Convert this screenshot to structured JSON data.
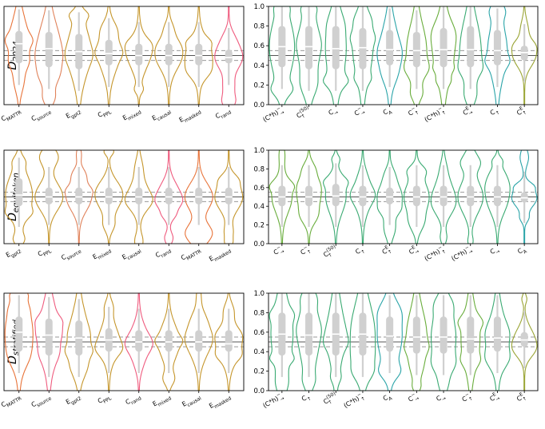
{
  "chart_data": {
    "type": "violin",
    "row_labels": [
      {
        "main": "D",
        "sub": "2024"
      },
      {
        "main": "D",
        "sub": "equitoken"
      },
      {
        "main": "D",
        "sub": "stratified"
      }
    ],
    "ylim": [
      0,
      1
    ],
    "yticks": [
      "0.0",
      "0.2",
      "0.4",
      "0.6",
      "0.8",
      "1.0"
    ],
    "reference_lines": {
      "solid": 0.5,
      "dashed": [
        0.45,
        0.55
      ]
    },
    "panels": [
      {
        "categories": [
          {
            "main": "C",
            "sub": "MATTR"
          },
          {
            "main": "C",
            "sub": "source"
          },
          {
            "main": "E",
            "sub": "gpt2"
          },
          {
            "main": "C",
            "sub": "PPL"
          },
          {
            "main": "E",
            "sub": "mixed"
          },
          {
            "main": "E",
            "sub": "causal"
          },
          {
            "main": "E",
            "sub": "masked"
          },
          {
            "main": "C",
            "sub": "rand"
          }
        ],
        "colors": [
          "#e8743a",
          "#e0825a",
          "#c5962c",
          "#c5962c",
          "#c5962c",
          "#c5962c",
          "#c5962c",
          "#ef5b7e"
        ],
        "medians": [
          0.62,
          0.57,
          0.54,
          0.52,
          0.5,
          0.5,
          0.5,
          0.48
        ],
        "q1": [
          0.42,
          0.38,
          0.36,
          0.4,
          0.4,
          0.4,
          0.4,
          0.42
        ],
        "q3": [
          0.75,
          0.74,
          0.72,
          0.66,
          0.62,
          0.62,
          0.62,
          0.56
        ],
        "show_yticks": false
      },
      {
        "categories": [
          {
            "main": "(C*h)",
            "sub": "→",
            "sup": "−"
          },
          {
            "main": "C",
            "sub": "↑",
            "sup": "(50)"
          },
          {
            "main": "C",
            "sub": "→",
            "sup": ""
          },
          {
            "main": "C",
            "sub": "→",
            "sup": "−"
          },
          {
            "main": "C",
            "sub": "A",
            "sup": ""
          },
          {
            "main": "C",
            "sub": "↑",
            "sup": "−"
          },
          {
            "main": "(C*h)",
            "sub": "↑",
            "sup": "−"
          },
          {
            "main": "C",
            "sub": "→",
            "sup": "E"
          },
          {
            "main": "C",
            "sub": "↑",
            "sup": ""
          },
          {
            "main": "C",
            "sub": "↑",
            "sup": "E"
          }
        ],
        "colors": [
          "#3aaa72",
          "#3aaa72",
          "#3aaa72",
          "#3aaa72",
          "#2aa4a8",
          "#69ad3c",
          "#69ad3c",
          "#3aaa72",
          "#2aa4a8",
          "#9aa535"
        ],
        "medians": [
          0.59,
          0.59,
          0.57,
          0.58,
          0.56,
          0.55,
          0.56,
          0.56,
          0.55,
          0.53
        ],
        "q1": [
          0.38,
          0.36,
          0.36,
          0.36,
          0.4,
          0.38,
          0.38,
          0.38,
          0.4,
          0.45
        ],
        "q3": [
          0.8,
          0.8,
          0.8,
          0.78,
          0.76,
          0.74,
          0.78,
          0.8,
          0.76,
          0.6
        ],
        "show_yticks": true
      },
      {
        "categories": [
          {
            "main": "E",
            "sub": "gpt2"
          },
          {
            "main": "C",
            "sub": "PPL"
          },
          {
            "main": "C",
            "sub": "source"
          },
          {
            "main": "E",
            "sub": "mixed"
          },
          {
            "main": "E",
            "sub": "causal"
          },
          {
            "main": "C",
            "sub": "rand"
          },
          {
            "main": "C",
            "sub": "MATTR"
          },
          {
            "main": "E",
            "sub": "masked"
          }
        ],
        "colors": [
          "#c5962c",
          "#c5962c",
          "#e0825a",
          "#c5962c",
          "#c5962c",
          "#ef5b7e",
          "#e8743a",
          "#c5962c"
        ],
        "medians": [
          0.52,
          0.5,
          0.5,
          0.5,
          0.5,
          0.5,
          0.5,
          0.5
        ],
        "q1": [
          0.4,
          0.42,
          0.42,
          0.42,
          0.42,
          0.42,
          0.42,
          0.42
        ],
        "q3": [
          0.7,
          0.6,
          0.6,
          0.6,
          0.6,
          0.6,
          0.6,
          0.6
        ],
        "show_yticks": false
      },
      {
        "categories": [
          {
            "main": "C",
            "sub": "→",
            "sup": "−"
          },
          {
            "main": "C",
            "sub": "↑",
            "sup": "−"
          },
          {
            "main": "C",
            "sub": "↑",
            "sup": "(50)"
          },
          {
            "main": "C",
            "sub": "↑",
            "sup": ""
          },
          {
            "main": "C",
            "sub": "↑",
            "sup": "E"
          },
          {
            "main": "C",
            "sub": "→",
            "sup": "E"
          },
          {
            "main": "(C*h)",
            "sub": "↑",
            "sup": "−"
          },
          {
            "main": "(C*h)",
            "sub": "→",
            "sup": "−"
          },
          {
            "main": "C",
            "sub": "→",
            "sup": ""
          },
          {
            "main": "C",
            "sub": "A",
            "sup": ""
          }
        ],
        "colors": [
          "#69ad3c",
          "#69ad3c",
          "#3aaa72",
          "#3aaa72",
          "#3aaa72",
          "#3aaa72",
          "#3aaa72",
          "#3aaa72",
          "#3aaa72",
          "#2aa4a8"
        ],
        "medians": [
          0.5,
          0.5,
          0.51,
          0.5,
          0.5,
          0.5,
          0.5,
          0.5,
          0.5,
          0.49
        ],
        "q1": [
          0.4,
          0.4,
          0.4,
          0.4,
          0.42,
          0.4,
          0.4,
          0.4,
          0.4,
          0.44
        ],
        "q3": [
          0.62,
          0.62,
          0.64,
          0.62,
          0.6,
          0.62,
          0.62,
          0.62,
          0.62,
          0.55
        ],
        "show_yticks": true
      },
      {
        "categories": [
          {
            "main": "C",
            "sub": "MATTR"
          },
          {
            "main": "C",
            "sub": "source"
          },
          {
            "main": "E",
            "sub": "gpt2"
          },
          {
            "main": "C",
            "sub": "PPL"
          },
          {
            "main": "C",
            "sub": "rand"
          },
          {
            "main": "E",
            "sub": "mixed"
          },
          {
            "main": "E",
            "sub": "causal"
          },
          {
            "main": "E",
            "sub": "masked"
          }
        ],
        "colors": [
          "#e8743a",
          "#ef5b7e",
          "#c5962c",
          "#c5962c",
          "#ef5b7e",
          "#c5962c",
          "#c5962c",
          "#c5962c"
        ],
        "medians": [
          0.6,
          0.57,
          0.54,
          0.52,
          0.5,
          0.5,
          0.5,
          0.48
        ],
        "q1": [
          0.4,
          0.36,
          0.36,
          0.4,
          0.4,
          0.4,
          0.4,
          0.4
        ],
        "q3": [
          0.76,
          0.74,
          0.72,
          0.64,
          0.62,
          0.62,
          0.62,
          0.62
        ],
        "show_yticks": false
      },
      {
        "categories": [
          {
            "main": "(C*h)",
            "sub": "→",
            "sup": "−"
          },
          {
            "main": "C",
            "sub": "↑",
            "sup": ""
          },
          {
            "main": "C",
            "sub": "↑",
            "sup": "(50)"
          },
          {
            "main": "(C*h)",
            "sub": "↑",
            "sup": "−"
          },
          {
            "main": "C",
            "sub": "A",
            "sup": ""
          },
          {
            "main": "C",
            "sub": "→",
            "sup": "−"
          },
          {
            "main": "C",
            "sub": "→",
            "sup": ""
          },
          {
            "main": "C",
            "sub": "↑",
            "sup": "−"
          },
          {
            "main": "C",
            "sub": "→",
            "sup": "E"
          },
          {
            "main": "C",
            "sub": "↑",
            "sup": "E"
          }
        ],
        "colors": [
          "#3aaa72",
          "#3aaa72",
          "#3aaa72",
          "#3aaa72",
          "#2aa4a8",
          "#69ad3c",
          "#3aaa72",
          "#69ad3c",
          "#3aaa72",
          "#9aa535"
        ],
        "medians": [
          0.58,
          0.57,
          0.58,
          0.58,
          0.56,
          0.55,
          0.55,
          0.53,
          0.54,
          0.52
        ],
        "q1": [
          0.36,
          0.36,
          0.36,
          0.36,
          0.4,
          0.38,
          0.38,
          0.38,
          0.4,
          0.45
        ],
        "q3": [
          0.8,
          0.8,
          0.8,
          0.8,
          0.76,
          0.76,
          0.76,
          0.76,
          0.76,
          0.6
        ],
        "show_yticks": true
      }
    ]
  }
}
